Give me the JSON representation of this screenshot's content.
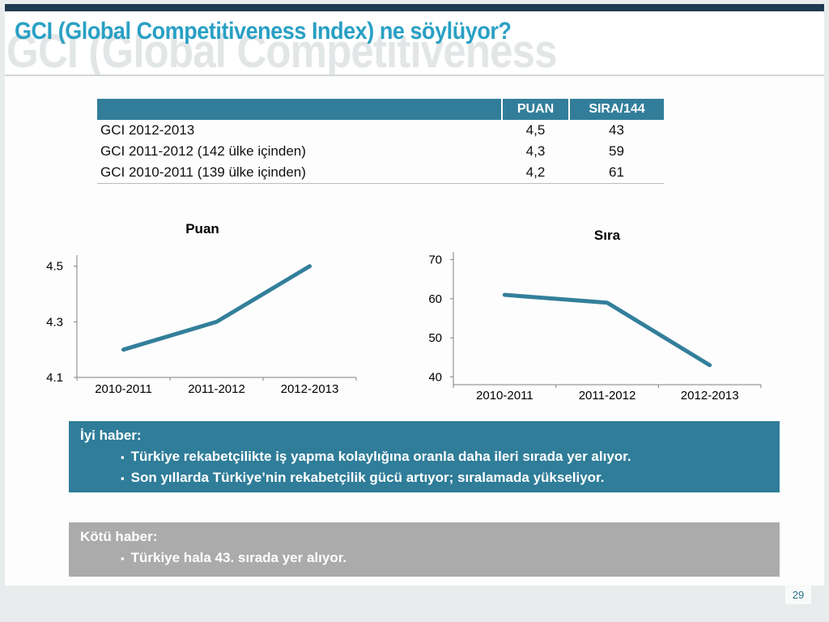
{
  "slide": {
    "title": "GCI (Global Competitiveness Index) ne söylüyor?",
    "watermark": "GCI (Global Competitiveness",
    "page_number": "29"
  },
  "table": {
    "headers": [
      "",
      "PUAN",
      "SIRA/144"
    ],
    "rows": [
      {
        "label": "GCI 2012-2013",
        "puan": "4,5",
        "sira": "43"
      },
      {
        "label": "GCI 2011-2012 (142 ülke içinden)",
        "puan": "4,3",
        "sira": "59"
      },
      {
        "label": "GCI 2010-2011 (139 ülke içinden)",
        "puan": "4,2",
        "sira": "61"
      }
    ]
  },
  "chart_data": [
    {
      "type": "line",
      "title": "Puan",
      "categories": [
        "2010-2011",
        "2011-2012",
        "2012-2013"
      ],
      "values": [
        4.2,
        4.3,
        4.5
      ],
      "ylim": [
        4.1,
        4.54
      ],
      "yticks": [
        4.1,
        4.3,
        4.5
      ],
      "line_color": "#337f9b",
      "grid": false,
      "legend": "none"
    },
    {
      "type": "line",
      "title": "Sıra",
      "categories": [
        "2010-2011",
        "2011-2012",
        "2012-2013"
      ],
      "values": [
        61,
        59,
        43
      ],
      "ylim": [
        38,
        72
      ],
      "yticks": [
        40,
        50,
        60,
        70
      ],
      "line_color": "#337f9b",
      "grid": false,
      "legend": "none"
    }
  ],
  "good_news": {
    "heading": "İyi haber:",
    "bullets": [
      "Türkiye rekabetçilikte iş yapma kolaylığına oranla daha ileri sırada yer alıyor.",
      "Son yıllarda Türkiye’nin rekabetçilik gücü artıyor; sıralamada yükseliyor."
    ]
  },
  "bad_news": {
    "heading": "Kötü haber:",
    "bullets": [
      "Türkiye hala 43. sırada yer alıyor."
    ]
  },
  "ui": {
    "bullet_marker": "▪"
  },
  "colors": {
    "top_bar": "#1e3a50",
    "title": "#29a0c4",
    "teal_header": "#327e9a",
    "good_box": "#2f7d99",
    "bad_box": "#ababab",
    "line": "#337f9b"
  }
}
